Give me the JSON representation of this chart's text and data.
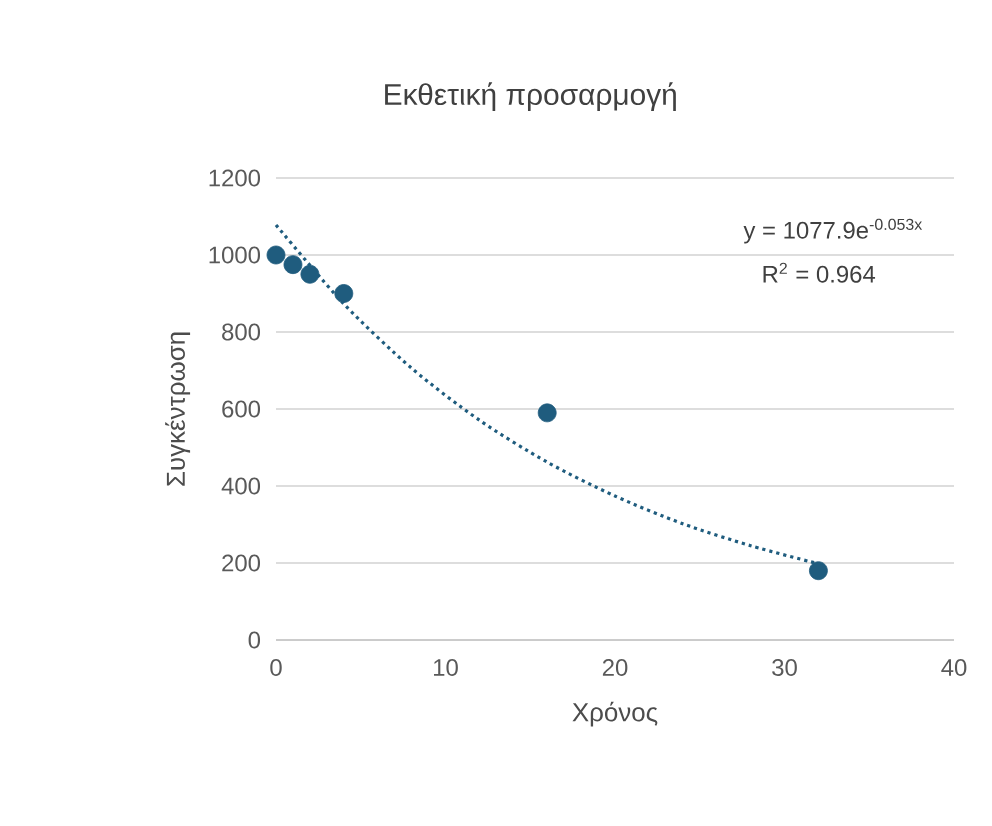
{
  "chart_data": {
    "type": "scatter",
    "title": "Εκθετική προσαρμογή",
    "xlabel": "Χρόνος",
    "ylabel": "Συγκέντρωση",
    "annotations": [
      "y = 1077.9e$^{-0.053x}$",
      "R$^{2}$ = 0.964"
    ],
    "series": [
      {
        "type": "line",
        "color": "#1f5c7e",
        "marker": "none",
        "line_style": "dotted",
        "x": [
          0,
          4,
          8,
          12,
          16,
          20,
          24,
          28,
          32
        ],
        "values": [
          1078,
          873,
          706,
          571,
          462,
          374,
          302,
          245,
          198
        ]
      },
      {
        "color": "#1f5c7e",
        "marker": "circle",
        "x": [
          0,
          1,
          2,
          4,
          16,
          32
        ],
        "values": [
          1000,
          975,
          950,
          900,
          590,
          180
        ]
      }
    ],
    "xlim": [
      0,
      40
    ],
    "ylim": [
      0,
      1200
    ],
    "xticks": [
      0,
      10,
      20,
      30,
      40
    ],
    "yticks": [
      0,
      200,
      400,
      600,
      800,
      1000,
      1200
    ],
    "grid": "y"
  }
}
